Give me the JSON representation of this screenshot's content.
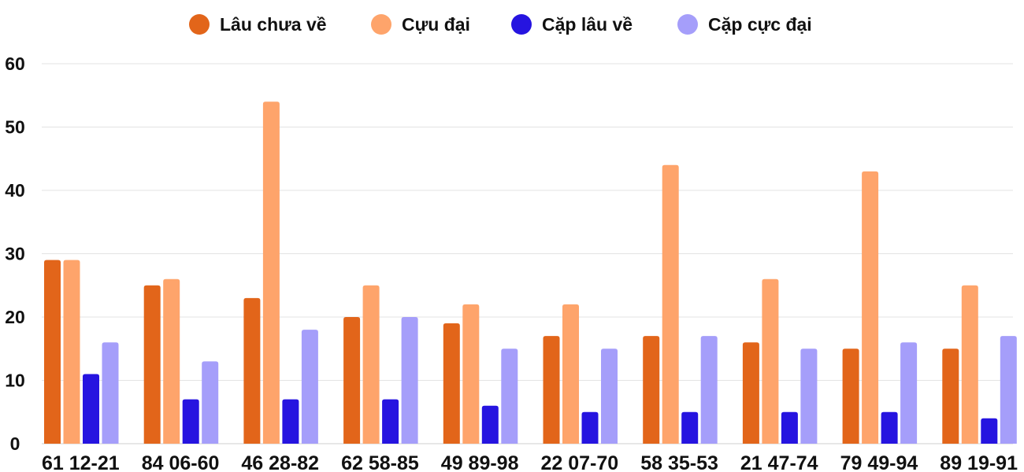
{
  "chart_data": {
    "type": "bar",
    "categories": [
      "61 12-21",
      "84 06-60",
      "46 28-82",
      "62 58-85",
      "49 89-98",
      "22 07-70",
      "58 35-53",
      "21 47-74",
      "79 49-94",
      "89 19-91"
    ],
    "series": [
      {
        "name": "Lâu chưa về",
        "color": "#e2651a",
        "values": [
          29,
          25,
          23,
          20,
          19,
          17,
          17,
          16,
          15,
          15
        ]
      },
      {
        "name": "Cựu đại",
        "color": "#fea46b",
        "values": [
          29,
          26,
          54,
          25,
          22,
          22,
          44,
          26,
          43,
          25
        ]
      },
      {
        "name": "Cặp lâu về",
        "color": "#2614e0",
        "values": [
          11,
          7,
          7,
          7,
          6,
          5,
          5,
          5,
          5,
          4
        ]
      },
      {
        "name": "Cặp cực đại",
        "color": "#a59efa",
        "values": [
          16,
          13,
          18,
          20,
          15,
          15,
          17,
          15,
          16,
          17
        ]
      }
    ],
    "ylim": [
      0,
      60
    ],
    "yticks": [
      0,
      10,
      20,
      30,
      40,
      50,
      60
    ],
    "grid": true,
    "legend_position": "top-center",
    "title": "",
    "xlabel": "",
    "ylabel": ""
  }
}
